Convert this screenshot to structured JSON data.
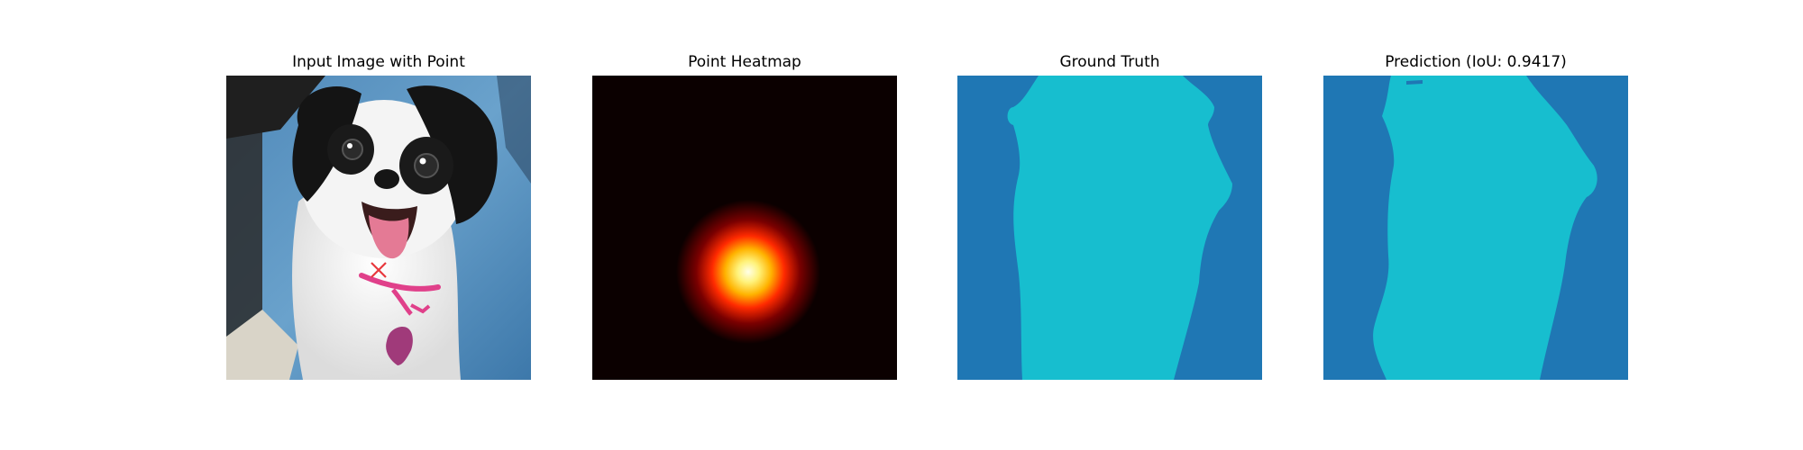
{
  "figure": {
    "panels": [
      {
        "title": "Input Image with Point",
        "content": "photo-dog-with-point-marker",
        "marker": {
          "symbol": "x",
          "color": "#e8383d"
        }
      },
      {
        "title": "Point Heatmap",
        "content": "gaussian-heatmap",
        "colors": {
          "background": "#0b0000",
          "mid": "#ff2a00",
          "peak": "#ffffe0"
        }
      },
      {
        "title": "Ground Truth",
        "content": "segmentation-mask",
        "colors": {
          "background": "#1f77b4",
          "foreground": "#17becf"
        }
      },
      {
        "title": "Prediction (IoU: 0.9417)",
        "content": "segmentation-mask",
        "iou": 0.9417,
        "colors": {
          "background": "#1f77b4",
          "foreground": "#17becf"
        }
      }
    ]
  }
}
